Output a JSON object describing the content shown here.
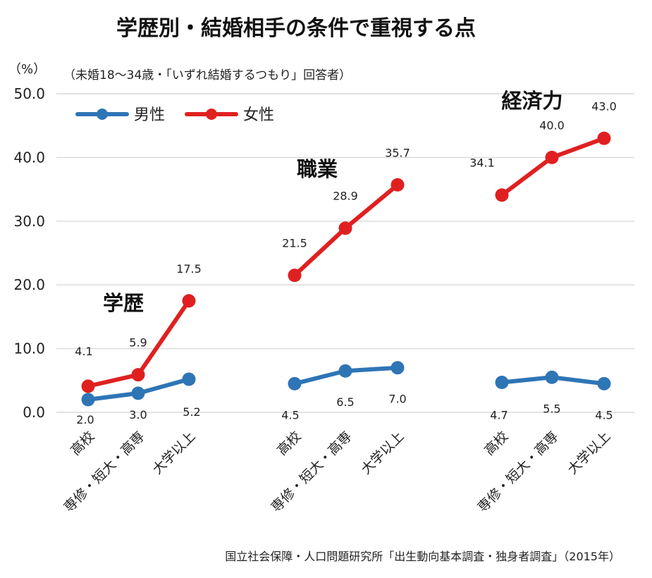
{
  "title": "学歴別・結婚相手の条件で重視する点",
  "subtitle": "（未婚18〜34歳・「いずれ結婚するつもり」回答者）",
  "unit": "（%）",
  "source": "国立社会保障・人口問題研究所「出生動向基本調査・独身者調査」（2015年）",
  "colors": {
    "male": "#2e75b6",
    "female": "#e02020",
    "grid": "#d9d9d9"
  },
  "chart_data": {
    "type": "line",
    "ylim": [
      0,
      50
    ],
    "yticks": [
      "0.0",
      "10.0",
      "20.0",
      "30.0",
      "40.0",
      "50.0"
    ],
    "grid": true,
    "legend_position": "top-left",
    "legend": [
      {
        "name": "男性",
        "color": "#2e75b6"
      },
      {
        "name": "女性",
        "color": "#e02020"
      }
    ],
    "groups": [
      {
        "label": "学歴",
        "categories": [
          "高校",
          "専修・短大・高専",
          "大学以上"
        ],
        "series": [
          {
            "name": "男性",
            "values": [
              2.0,
              3.0,
              5.2
            ],
            "labels": [
              "2.0",
              "3.0",
              "5.2"
            ]
          },
          {
            "name": "女性",
            "values": [
              4.1,
              5.9,
              17.5
            ],
            "labels": [
              "4.1",
              "5.9",
              "17.5"
            ]
          }
        ]
      },
      {
        "label": "職業",
        "categories": [
          "高校",
          "専修・短大・高専",
          "大学以上"
        ],
        "series": [
          {
            "name": "男性",
            "values": [
              4.5,
              6.5,
              7.0
            ],
            "labels": [
              "4.5",
              "6.5",
              "7.0"
            ]
          },
          {
            "name": "女性",
            "values": [
              21.5,
              28.9,
              35.7
            ],
            "labels": [
              "21.5",
              "28.9",
              "35.7"
            ]
          }
        ]
      },
      {
        "label": "経済力",
        "categories": [
          "高校",
          "専修・短大・高専",
          "大学以上"
        ],
        "series": [
          {
            "name": "男性",
            "values": [
              4.7,
              5.5,
              4.5
            ],
            "labels": [
              "4.7",
              "5.5",
              "4.5"
            ]
          },
          {
            "name": "女性",
            "values": [
              34.1,
              40.0,
              43.0
            ],
            "labels": [
              "34.1",
              "40.0",
              "43.0"
            ]
          }
        ]
      }
    ]
  }
}
